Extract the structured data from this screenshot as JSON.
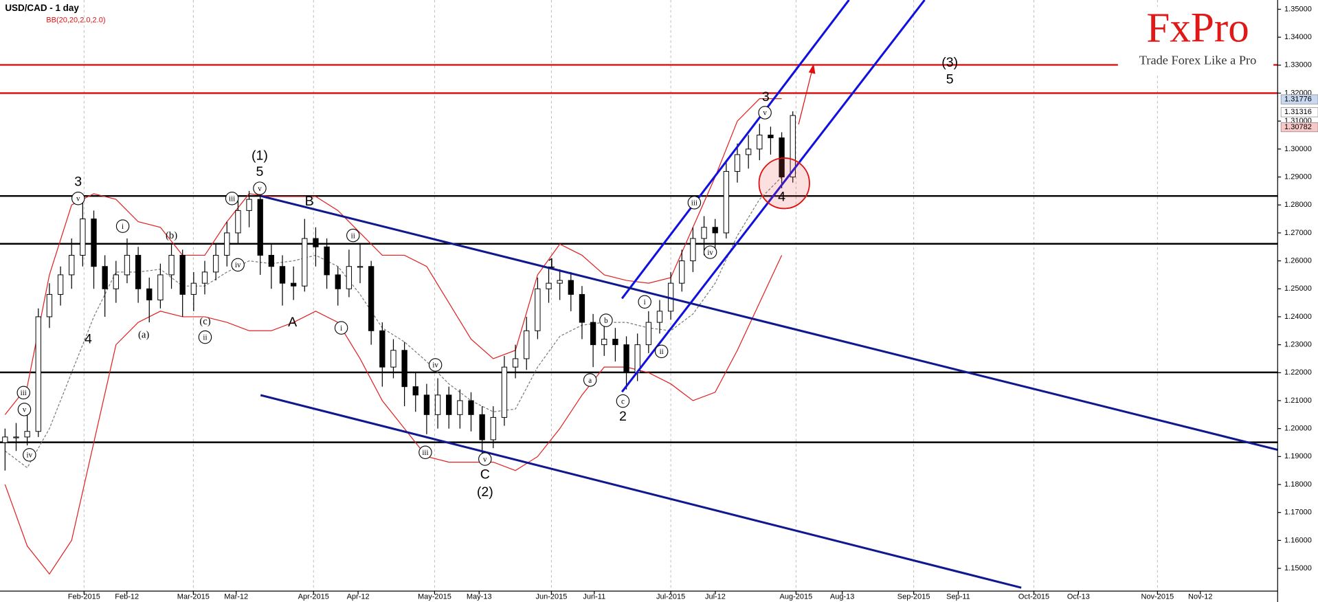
{
  "chart_data": {
    "type": "candlestick",
    "title": "USD/CAD - 1 day",
    "subtitle": "BB(20,20,2.0,2.0)",
    "brand": "FxPro",
    "slogan": "Trade Forex Like a Pro",
    "ylim": [
      1.14188,
      1.35331
    ],
    "yticks": [
      {
        "value": 1.15,
        "label": "1.15000"
      },
      {
        "value": 1.16,
        "label": "1.16000"
      },
      {
        "value": 1.17,
        "label": "1.17000"
      },
      {
        "value": 1.18,
        "label": "1.18000"
      },
      {
        "value": 1.19,
        "label": "1.19000"
      },
      {
        "value": 1.2,
        "label": "1.20000"
      },
      {
        "value": 1.21,
        "label": "1.21000"
      },
      {
        "value": 1.22,
        "label": "1.22000"
      },
      {
        "value": 1.23,
        "label": "1.23000"
      },
      {
        "value": 1.24,
        "label": "1.24000"
      },
      {
        "value": 1.25,
        "label": "1.25000"
      },
      {
        "value": 1.26,
        "label": "1.26000"
      },
      {
        "value": 1.27,
        "label": "1.27000"
      },
      {
        "value": 1.28,
        "label": "1.28000"
      },
      {
        "value": 1.29,
        "label": "1.29000"
      },
      {
        "value": 1.3,
        "label": "1.30000"
      },
      {
        "value": 1.31,
        "label": "1.31000"
      },
      {
        "value": 1.32,
        "label": "1.32000"
      },
      {
        "value": 1.33,
        "label": "1.33000"
      },
      {
        "value": 1.34,
        "label": "1.34000"
      },
      {
        "value": 1.35,
        "label": "1.35000"
      }
    ],
    "x_labels": [
      "Feb-2015",
      "Feb-12",
      "Mar-2015",
      "Mar-12",
      "Apr-2015",
      "Apr-12",
      "May-2015",
      "May-13",
      "Jun-2015",
      "Jun-11",
      "Jul-2015",
      "Jul-12",
      "Aug-2015",
      "Aug-13",
      "Sep-2015",
      "Sep-11",
      "Oct-2015",
      "Oct-13",
      "Nov-2015",
      "Nov-12"
    ],
    "candles": [
      [
        1.195,
        1.2,
        1.185,
        1.197
      ],
      [
        1.197,
        1.202,
        1.192,
        1.197
      ],
      [
        1.197,
        1.205,
        1.194,
        1.199
      ],
      [
        1.199,
        1.243,
        1.197,
        1.24
      ],
      [
        1.24,
        1.252,
        1.236,
        1.248
      ],
      [
        1.248,
        1.258,
        1.244,
        1.255
      ],
      [
        1.255,
        1.268,
        1.25,
        1.262
      ],
      [
        1.262,
        1.281,
        1.258,
        1.275
      ],
      [
        1.275,
        1.278,
        1.25,
        1.258
      ],
      [
        1.258,
        1.262,
        1.24,
        1.25
      ],
      [
        1.25,
        1.26,
        1.245,
        1.255
      ],
      [
        1.255,
        1.268,
        1.252,
        1.262
      ],
      [
        1.262,
        1.265,
        1.245,
        1.25
      ],
      [
        1.25,
        1.254,
        1.238,
        1.246
      ],
      [
        1.246,
        1.259,
        1.243,
        1.255
      ],
      [
        1.255,
        1.266,
        1.25,
        1.262
      ],
      [
        1.262,
        1.264,
        1.24,
        1.248
      ],
      [
        1.248,
        1.256,
        1.242,
        1.252
      ],
      [
        1.252,
        1.26,
        1.248,
        1.256
      ],
      [
        1.256,
        1.266,
        1.253,
        1.262
      ],
      [
        1.262,
        1.274,
        1.258,
        1.27
      ],
      [
        1.27,
        1.282,
        1.266,
        1.278
      ],
      [
        1.278,
        1.285,
        1.272,
        1.282
      ],
      [
        1.282,
        1.284,
        1.255,
        1.262
      ],
      [
        1.262,
        1.266,
        1.25,
        1.258
      ],
      [
        1.258,
        1.262,
        1.244,
        1.252
      ],
      [
        1.252,
        1.258,
        1.246,
        1.251
      ],
      [
        1.251,
        1.275,
        1.249,
        1.268
      ],
      [
        1.268,
        1.272,
        1.258,
        1.265
      ],
      [
        1.265,
        1.268,
        1.25,
        1.255
      ],
      [
        1.255,
        1.258,
        1.244,
        1.25
      ],
      [
        1.25,
        1.264,
        1.247,
        1.258
      ],
      [
        1.258,
        1.266,
        1.252,
        1.258
      ],
      [
        1.258,
        1.26,
        1.23,
        1.235
      ],
      [
        1.235,
        1.238,
        1.215,
        1.222
      ],
      [
        1.222,
        1.232,
        1.218,
        1.228
      ],
      [
        1.228,
        1.231,
        1.208,
        1.215
      ],
      [
        1.215,
        1.22,
        1.206,
        1.212
      ],
      [
        1.212,
        1.216,
        1.198,
        1.205
      ],
      [
        1.205,
        1.218,
        1.2,
        1.212
      ],
      [
        1.212,
        1.215,
        1.2,
        1.205
      ],
      [
        1.205,
        1.214,
        1.2,
        1.21
      ],
      [
        1.21,
        1.213,
        1.199,
        1.205
      ],
      [
        1.205,
        1.208,
        1.19,
        1.196
      ],
      [
        1.196,
        1.208,
        1.193,
        1.204
      ],
      [
        1.204,
        1.226,
        1.201,
        1.222
      ],
      [
        1.222,
        1.23,
        1.218,
        1.225
      ],
      [
        1.225,
        1.24,
        1.221,
        1.235
      ],
      [
        1.235,
        1.254,
        1.232,
        1.25
      ],
      [
        1.25,
        1.258,
        1.245,
        1.252
      ],
      [
        1.252,
        1.257,
        1.246,
        1.253
      ],
      [
        1.253,
        1.256,
        1.242,
        1.248
      ],
      [
        1.248,
        1.251,
        1.232,
        1.238
      ],
      [
        1.238,
        1.241,
        1.222,
        1.23
      ],
      [
        1.23,
        1.237,
        1.226,
        1.232
      ],
      [
        1.232,
        1.236,
        1.224,
        1.23
      ],
      [
        1.23,
        1.233,
        1.214,
        1.22
      ],
      [
        1.22,
        1.234,
        1.217,
        1.23
      ],
      [
        1.23,
        1.242,
        1.227,
        1.238
      ],
      [
        1.238,
        1.246,
        1.234,
        1.242
      ],
      [
        1.242,
        1.256,
        1.239,
        1.252
      ],
      [
        1.252,
        1.264,
        1.249,
        1.26
      ],
      [
        1.26,
        1.272,
        1.256,
        1.268
      ],
      [
        1.268,
        1.276,
        1.262,
        1.272
      ],
      [
        1.272,
        1.275,
        1.264,
        1.27
      ],
      [
        1.27,
        1.296,
        1.268,
        1.292
      ],
      [
        1.292,
        1.302,
        1.288,
        1.298
      ],
      [
        1.298,
        1.305,
        1.293,
        1.3
      ],
      [
        1.3,
        1.309,
        1.296,
        1.305
      ],
      [
        1.305,
        1.308,
        1.298,
        1.304
      ],
      [
        1.304,
        1.306,
        1.286,
        1.29
      ],
      [
        1.29,
        1.3135,
        1.288,
        1.312
      ]
    ],
    "bands": [
      {
        "color": "#e02020",
        "values": [
          1.205,
          1.215,
          1.255,
          1.28,
          1.284,
          1.282,
          1.274,
          1.272,
          1.262,
          1.262,
          1.274,
          1.284,
          1.283,
          1.283,
          1.283,
          1.278,
          1.27,
          1.262,
          1.262,
          1.258,
          1.245,
          1.232,
          1.225,
          1.228,
          1.255,
          1.266,
          1.262,
          1.255,
          1.253,
          1.252,
          1.254,
          1.272,
          1.29,
          1.31,
          1.318,
          1.318
        ]
      },
      {
        "color": "#e02020",
        "values": [
          1.18,
          1.158,
          1.148,
          1.16,
          1.195,
          1.23,
          1.238,
          1.242,
          1.24,
          1.24,
          1.238,
          1.235,
          1.235,
          1.238,
          1.242,
          1.238,
          1.225,
          1.21,
          1.2,
          1.19,
          1.188,
          1.188,
          1.188,
          1.185,
          1.19,
          1.2,
          1.212,
          1.222,
          1.222,
          1.22,
          1.216,
          1.21,
          1.213,
          1.228,
          1.245,
          1.262
        ]
      },
      {
        "color": "#708070",
        "values": [
          1.192,
          1.186,
          1.2,
          1.22,
          1.24,
          1.256,
          1.256,
          1.257,
          1.251,
          1.251,
          1.256,
          1.26,
          1.259,
          1.26,
          1.262,
          1.258,
          1.248,
          1.236,
          1.231,
          1.224,
          1.216,
          1.21,
          1.206,
          1.207,
          1.222,
          1.233,
          1.237,
          1.238,
          1.238,
          1.236,
          1.235,
          1.241,
          1.252,
          1.269,
          1.282,
          1.29
        ]
      }
    ],
    "levels": [
      {
        "value": 1.3301,
        "color": "#e01010"
      },
      {
        "value": 1.32,
        "color": "#e01010"
      },
      {
        "value": 1.2832,
        "color": "#000000"
      },
      {
        "value": 1.2661,
        "color": "#000000"
      },
      {
        "value": 1.2201,
        "color": "#000000"
      },
      {
        "value": 1.1951,
        "color": "#000000"
      }
    ],
    "price_tags": [
      {
        "value": 1.31776,
        "color": "#c8d8f0"
      },
      {
        "value": 1.31316,
        "color": "#ffffff"
      },
      {
        "value": 1.30782,
        "color": "#f8c8c8"
      }
    ],
    "annotations": [
      "3",
      "4",
      "(1)",
      "5",
      "B",
      "A",
      "1",
      "2",
      "C",
      "(2)",
      "3",
      "4",
      "(3)",
      "5",
      "v",
      "i",
      "(b)",
      "(a)",
      "(c)",
      "ii",
      "iii",
      "iv",
      "v",
      "ii",
      "i",
      "iv",
      "iii",
      "v",
      "a",
      "b",
      "c",
      "i",
      "ii",
      "iii",
      "iv",
      "v",
      "iii",
      "v",
      "iv"
    ]
  }
}
